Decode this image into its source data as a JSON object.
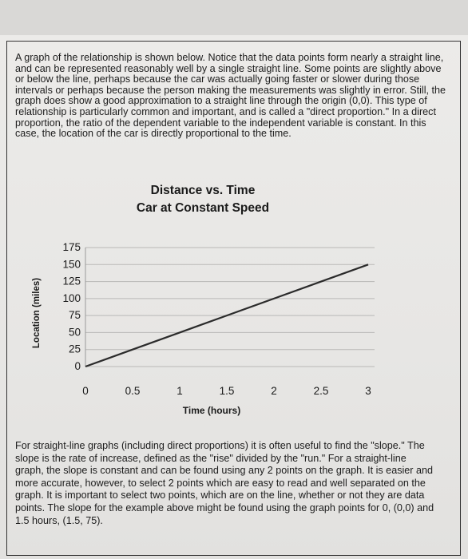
{
  "paragraph_top": "A graph of the relationship is shown below.  Notice that the data points form nearly a straight line, and can be represented reasonably well by a single straight line.  Some points are slightly above or below the line, perhaps because the car was actually going faster or slower during those intervals or perhaps because the person making the measurements was slightly in error.  Still, the graph does show a good approximation to a straight line through the origin (0,0).  This type of relationship is particularly common and important, and is called a \"direct proportion.\"  In a direct proportion, the ratio of the dependent variable to the independent variable is constant.  In this case, the location of the car is directly proportional to the time.",
  "paragraph_bottom": "For straight-line graphs (including direct proportions) it is often useful to find the \"slope.\" The slope is the rate of increase, defined as the \"rise\" divided by the \"run.\"  For a straight-line graph, the slope is constant and can be found using any 2 points on the graph.  It is easier and more accurate, however, to select 2 points which are easy to read and well separated on the graph.  It is important to select two points, which are on the line, whether or not they are data points.  The slope for the example above might be found using the graph points for 0, (0,0) and 1.5 hours, (1.5, 75).",
  "chart_data": {
    "type": "line",
    "title": "Distance vs. Time",
    "subtitle": "Car at Constant Speed",
    "xlabel": "Time (hours)",
    "ylabel": "Location (miles)",
    "x_ticks": [
      "0",
      "0.5",
      "1",
      "1.5",
      "2",
      "2.5",
      "3"
    ],
    "y_ticks": [
      "0",
      "25",
      "50",
      "75",
      "100",
      "125",
      "150",
      "175"
    ],
    "xlim": [
      0,
      3
    ],
    "ylim": [
      0,
      175
    ],
    "grid": true,
    "line_color": "#2b2b2b",
    "series": [
      {
        "x": [
          0,
          0.5,
          1,
          1.5,
          2,
          2.5,
          3
        ],
        "y": [
          0,
          25,
          50,
          75,
          100,
          125,
          150
        ]
      }
    ]
  }
}
